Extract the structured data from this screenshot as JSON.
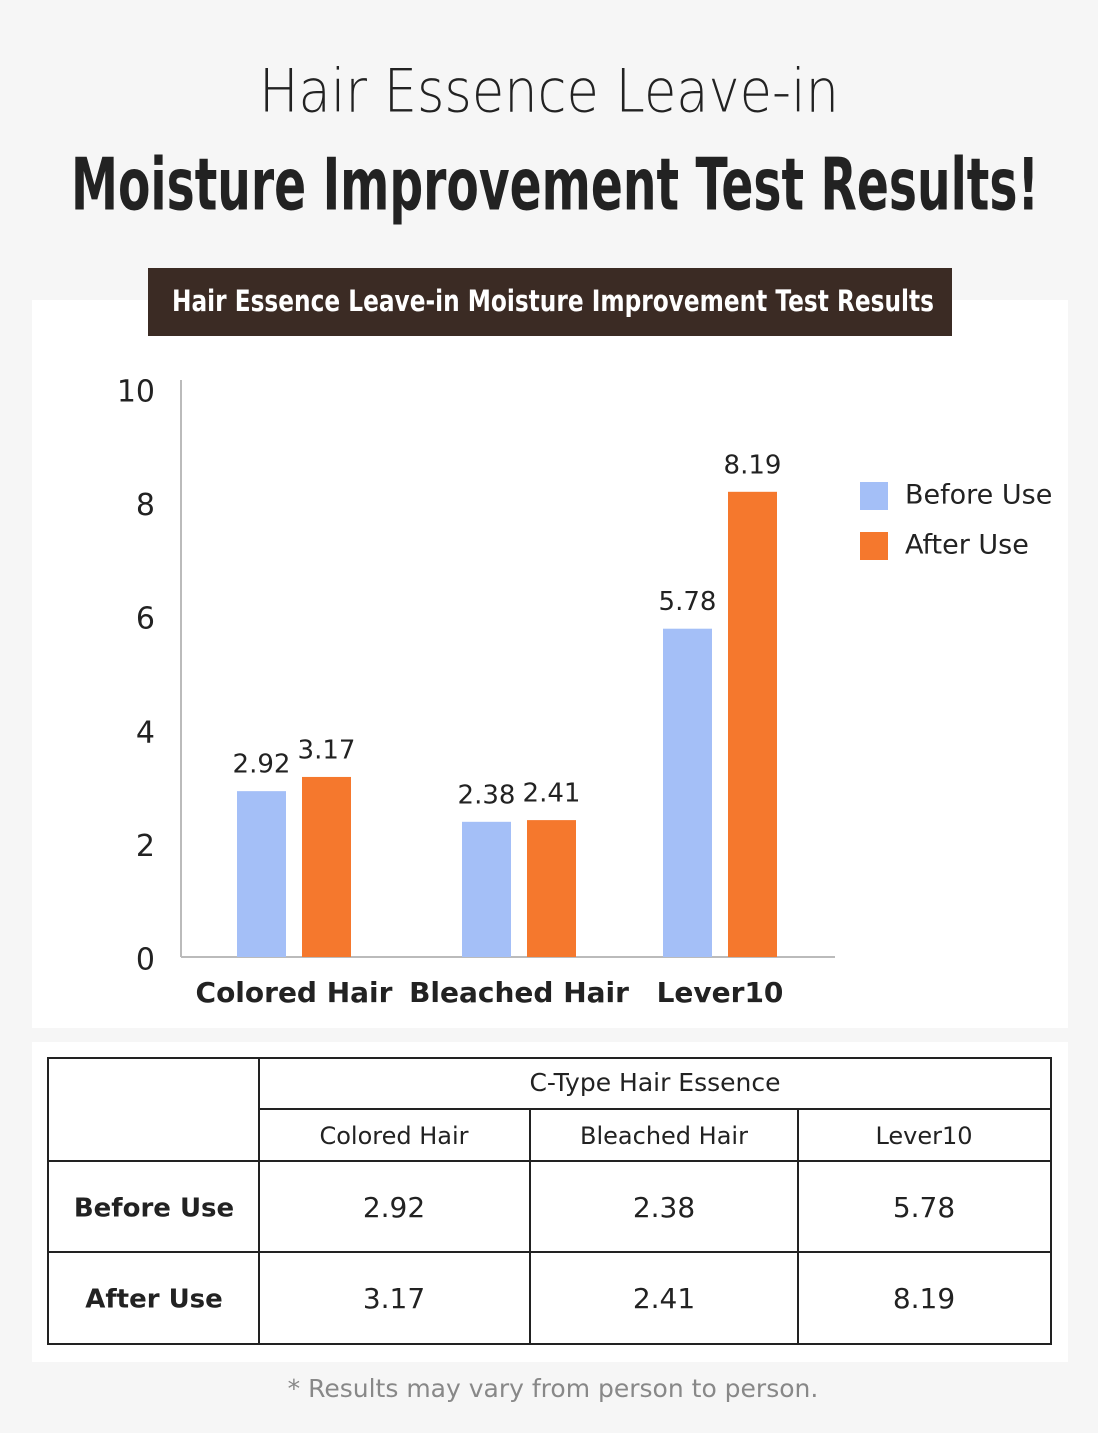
{
  "header": {
    "title_line1": "Hair Essence Leave-in",
    "title_line2": "Moisture Improvement Test Results!"
  },
  "chart_data": {
    "type": "bar",
    "title": "Hair Essence Leave-in Moisture Improvement Test Results",
    "categories": [
      "Colored Hair",
      "Bleached Hair",
      "Lever10"
    ],
    "series": [
      {
        "name": "Before Use",
        "color": "#a4bff7",
        "values": [
          2.92,
          2.38,
          5.78
        ]
      },
      {
        "name": "After Use",
        "color": "#f5782d",
        "values": [
          3.17,
          2.41,
          8.19
        ]
      }
    ],
    "ylim": [
      0,
      10
    ],
    "yticks": [
      0,
      2,
      4,
      6,
      8,
      10
    ],
    "grid": false,
    "legend": "right"
  },
  "table": {
    "group_header": "C-Type Hair Essence",
    "columns": [
      "Colored Hair",
      "Bleached Hair",
      "Lever10"
    ],
    "rows": [
      [
        "Before Use",
        2.92,
        2.38,
        5.78
      ],
      [
        "After Use",
        3.17,
        2.41,
        8.19
      ]
    ]
  },
  "footnote": "* Results may vary from person to person."
}
